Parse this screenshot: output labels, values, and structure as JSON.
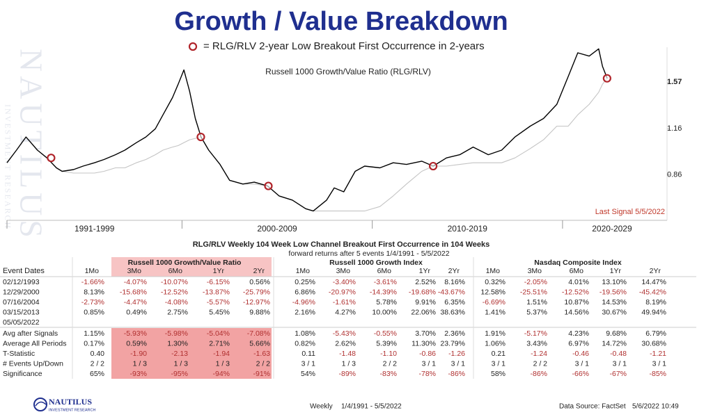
{
  "title": "Growth / Value Breakdown",
  "watermark": [
    "NAUTILUS",
    "INVESTMENT RESEARCH"
  ],
  "chart_data": {
    "type": "line",
    "subtitle": "Russell 1000 Growth/Value Ratio (RLG/RLV)",
    "x": [
      1990.8,
      1991.3,
      1991.8,
      1992.4,
      1992.9,
      1993.4,
      1993.7,
      1994.3,
      1994.8,
      1995.4,
      1995.9,
      1996.5,
      1997.0,
      1997.6,
      1998.1,
      1998.6,
      1999.0,
      1999.5,
      1999.8,
      2000.1,
      2000.4,
      2000.7,
      2001.0,
      2001.4,
      2002.0,
      2002.5,
      2003.2,
      2003.8,
      2004.5,
      2005.1,
      2005.8,
      2006.5,
      2006.9,
      2007.6,
      2008.0,
      2008.5,
      2009.1,
      2009.6,
      2010.4,
      2011.1,
      2011.8,
      2012.6,
      2013.2,
      2013.9,
      2014.6,
      2015.3,
      2016.1,
      2016.8,
      2017.5,
      2018.3,
      2019.0,
      2019.7,
      2020.3,
      2020.8,
      2021.4,
      2021.9,
      2022.1,
      2022.35
    ],
    "series": [
      {
        "color": "#000000",
        "values": [
          0.93,
          1.01,
          1.1,
          1.01,
          0.96,
          0.9,
          0.88,
          0.89,
          0.91,
          0.93,
          0.95,
          0.98,
          1.01,
          1.06,
          1.1,
          1.16,
          1.27,
          1.42,
          1.55,
          1.7,
          1.48,
          1.24,
          1.1,
          1.01,
          0.92,
          0.83,
          0.81,
          0.82,
          0.8,
          0.75,
          0.73,
          0.69,
          0.68,
          0.73,
          0.79,
          0.77,
          0.88,
          0.91,
          0.9,
          0.93,
          0.92,
          0.94,
          0.91,
          0.96,
          0.98,
          1.03,
          0.98,
          1.01,
          1.1,
          1.18,
          1.24,
          1.36,
          1.63,
          1.9,
          1.86,
          1.95,
          1.74,
          1.61
        ]
      },
      {
        "color": "#c4c4c4",
        "values": [
          null,
          null,
          null,
          null,
          0.96,
          0.9,
          0.88,
          0.87,
          0.87,
          0.87,
          0.88,
          0.9,
          0.9,
          0.93,
          0.95,
          0.98,
          1.01,
          1.03,
          1.04,
          1.06,
          1.08,
          1.09,
          1.1,
          1.01,
          0.92,
          0.83,
          0.81,
          0.81,
          0.8,
          0.75,
          0.73,
          0.69,
          0.68,
          0.68,
          0.68,
          0.68,
          0.68,
          0.68,
          0.7,
          0.75,
          0.81,
          0.88,
          0.91,
          0.91,
          0.92,
          0.93,
          0.93,
          0.93,
          0.96,
          1.02,
          1.08,
          1.18,
          1.18,
          1.27,
          1.36,
          1.47,
          1.55,
          1.61
        ]
      }
    ],
    "signals": {
      "label": "= RLG/RLV 2-year Low Breakout First Occurrence in 2-years",
      "color": "#b0242a",
      "x": [
        1993.12,
        2000.99,
        2004.54,
        2013.2,
        2022.34
      ],
      "values": [
        0.96,
        1.1,
        0.8,
        0.91,
        1.61
      ]
    },
    "xlim": [
      1990.8,
      2025.2
    ],
    "xticks": [
      2000,
      2010,
      2020
    ],
    "x_band_labels": [
      "1991-1999",
      "2000-2009",
      "2010-2019",
      "2020-2029"
    ],
    "ylim": [
      0.64,
      1.97
    ],
    "yticks": [
      0.86,
      1.16,
      1.57
    ],
    "log_scale": true,
    "grid": false,
    "annotation": "Last Signal 5/5/2022"
  },
  "table": {
    "title": "RLG/RLV Weekly 104 Week Low Channel Breakout First Occurrence in 104 Weeks",
    "subtitle": "forward returns after 5 events 1/4/1991 - 5/5/2022",
    "first_header": "Event Dates",
    "groups": [
      {
        "name": "Russell 1000 Growth/Value Ratio",
        "columns": [
          "1Mo",
          "3Mo",
          "6Mo",
          "1Yr",
          "2Yr"
        ]
      },
      {
        "name": "Russell 1000 Growth Index",
        "columns": [
          "1Mo",
          "3Mo",
          "6Mo",
          "1Yr",
          "2Yr"
        ]
      },
      {
        "name": "Nasdaq Composite Index",
        "columns": [
          "1Mo",
          "3Mo",
          "6Mo",
          "1Yr",
          "2Yr"
        ]
      }
    ],
    "rows": [
      {
        "label": "02/12/1993",
        "cells": [
          "-1.66%",
          "-4.07%",
          "-10.07%",
          "-6.15%",
          "0.56%",
          "0.25%",
          "-3.40%",
          "-3.61%",
          "2.52%",
          "8.16%",
          "0.32%",
          "-2.05%",
          "4.01%",
          "13.10%",
          "14.47%"
        ]
      },
      {
        "label": "12/29/2000",
        "cells": [
          "8.13%",
          "-15.68%",
          "-12.52%",
          "-13.87%",
          "-25.79%",
          "6.86%",
          "-20.97%",
          "-14.39%",
          "-19.68%",
          "-43.67%",
          "12.58%",
          "-25.51%",
          "-12.52%",
          "-19.56%",
          "-45.42%"
        ]
      },
      {
        "label": "07/16/2004",
        "cells": [
          "-2.73%",
          "-4.47%",
          "-4.08%",
          "-5.57%",
          "-12.97%",
          "-4.96%",
          "-1.61%",
          "5.78%",
          "9.91%",
          "6.35%",
          "-6.69%",
          "1.51%",
          "10.87%",
          "14.53%",
          "8.19%"
        ]
      },
      {
        "label": "03/15/2013",
        "cells": [
          "0.85%",
          "0.49%",
          "2.75%",
          "5.45%",
          "9.88%",
          "2.16%",
          "4.27%",
          "10.00%",
          "22.06%",
          "38.63%",
          "1.41%",
          "5.37%",
          "14.56%",
          "30.67%",
          "49.94%"
        ]
      },
      {
        "label": "05/05/2022",
        "cells": []
      }
    ],
    "summary_rows": [
      {
        "label": "Avg after Signals",
        "cells": [
          "1.15%",
          "-5.93%",
          "-5.98%",
          "-5.04%",
          "-7.08%",
          "1.08%",
          "-5.43%",
          "-0.55%",
          "3.70%",
          "2.36%",
          "1.91%",
          "-5.17%",
          "4.23%",
          "9.68%",
          "6.79%"
        ]
      },
      {
        "label": "Average All Periods",
        "cells": [
          "0.17%",
          "0.59%",
          "1.30%",
          "2.71%",
          "5.66%",
          "0.82%",
          "2.62%",
          "5.39%",
          "11.30%",
          "23.79%",
          "1.06%",
          "3.43%",
          "6.97%",
          "14.72%",
          "30.68%"
        ]
      },
      {
        "label": "T-Statistic",
        "cells": [
          "0.40",
          "-1.90",
          "-2.13",
          "-1.94",
          "-1.63",
          "0.11",
          "-1.48",
          "-1.10",
          "-0.86",
          "-1.26",
          "0.21",
          "-1.24",
          "-0.46",
          "-0.48",
          "-1.21"
        ]
      },
      {
        "label": "# Events Up/Down",
        "cells": [
          "2 / 2",
          "1 / 3",
          "1 / 3",
          "1 / 3",
          "2 / 2",
          "3 / 1",
          "1 / 3",
          "2 / 2",
          "3 / 1",
          "3 / 1",
          "3 / 1",
          "2 / 2",
          "3 / 1",
          "3 / 1",
          "3 / 1"
        ]
      },
      {
        "label": "Significance",
        "cells": [
          "65%",
          "-93%",
          "-95%",
          "-94%",
          "-91%",
          "54%",
          "-89%",
          "-83%",
          "-78%",
          "-86%",
          "58%",
          "-86%",
          "-66%",
          "-67%",
          "-85%"
        ]
      }
    ]
  },
  "footer": {
    "logo": [
      "NAUTILUS",
      "INVESTMENT RESEARCH"
    ],
    "frequency": "Weekly",
    "period": "1/4/1991 - 5/5/2022",
    "source": "Data Source: FactSet",
    "timestamp": "5/6/2022 10:49"
  }
}
